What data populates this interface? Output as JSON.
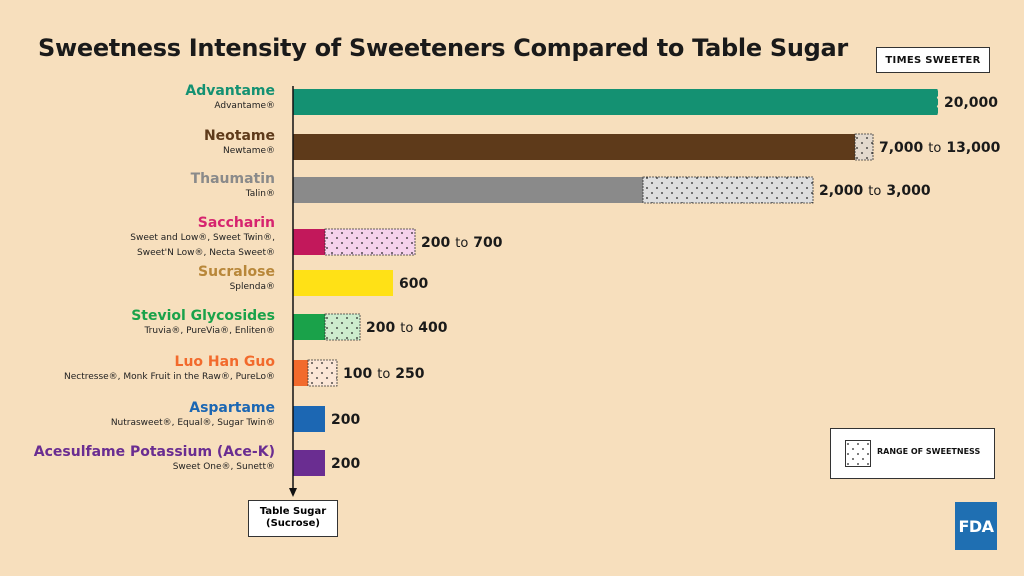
{
  "title": "Sweetness Intensity of Sweeteners Compared to Table Sugar",
  "unit_box": "TIMES SWEETER",
  "legend_label": "RANGE OF SWEETNESS",
  "baseline_label_line1": "Table Sugar",
  "baseline_label_line2": "(Sucrose)",
  "logo_text": "FDA",
  "colors": {
    "background": "#f7dfbd",
    "range_fill": "#ffffff"
  },
  "chart_data": {
    "type": "bar",
    "orientation": "horizontal",
    "title": "Sweetness Intensity of Sweeteners Compared to Table Sugar",
    "value_unit": "TIMES SWEETER",
    "scale": "non-linear (axis broken)",
    "baseline_label": "Table Sugar (Sucrose)",
    "items": [
      {
        "name": "Advantame",
        "brands": [
          "Advantame®"
        ],
        "min": 20000,
        "max": 20000,
        "label_min": "20,000",
        "label_max": "",
        "color": "#149172",
        "range_color": "",
        "name_color": "#149172"
      },
      {
        "name": "Neotame",
        "brands": [
          "Newtame®"
        ],
        "min": 7000,
        "max": 13000,
        "label_min": "7,000",
        "label_max": "13,000",
        "color": "#5e3a1a",
        "range_color": "#e3d9cd",
        "name_color": "#5e3a1a"
      },
      {
        "name": "Thaumatin",
        "brands": [
          "Talin®"
        ],
        "min": 2000,
        "max": 3000,
        "label_min": "2,000",
        "label_max": "3,000",
        "color": "#8a8a8a",
        "range_color": "#dedede",
        "name_color": "#8a8a8a"
      },
      {
        "name": "Saccharin",
        "brands": [
          "Sweet and Low®, Sweet Twin®,",
          "Sweet'N Low®, Necta Sweet®"
        ],
        "min": 200,
        "max": 700,
        "label_min": "200",
        "label_max": "700",
        "color": "#c2185b",
        "range_color": "#f6d2ec",
        "name_color": "#d6246f"
      },
      {
        "name": "Sucralose",
        "brands": [
          "Splenda®"
        ],
        "min": 600,
        "max": 600,
        "label_min": "600",
        "label_max": "",
        "color": "#ffe116",
        "range_color": "",
        "name_color": "#b8873a"
      },
      {
        "name": "Steviol Glycosides",
        "brands": [
          "Truvia®, PureVia®, Enliten®"
        ],
        "min": 200,
        "max": 400,
        "label_min": "200",
        "label_max": "400",
        "color": "#1aa24a",
        "range_color": "#cdeccd",
        "name_color": "#1aa24a"
      },
      {
        "name": "Luo Han Guo",
        "brands": [
          "Nectresse®, Monk Fruit in the Raw®, PureLo®"
        ],
        "min": 100,
        "max": 250,
        "label_min": "100",
        "label_max": "250",
        "color": "#f26a2c",
        "range_color": "#fbe6d6",
        "name_color": "#f26a2c"
      },
      {
        "name": "Aspartame",
        "brands": [
          "Nutrasweet®, Equal®, Sugar Twin®"
        ],
        "min": 200,
        "max": 200,
        "label_min": "200",
        "label_max": "",
        "color": "#1c67b3",
        "range_color": "",
        "name_color": "#1c67b3"
      },
      {
        "name": "Acesulfame Potassium (Ace-K)",
        "brands": [
          "Sweet One®, Sunett®"
        ],
        "min": 200,
        "max": 200,
        "label_min": "200",
        "label_max": "",
        "color": "#6a2d91",
        "range_color": "",
        "name_color": "#6a2d91"
      }
    ],
    "range_connector": "to"
  }
}
